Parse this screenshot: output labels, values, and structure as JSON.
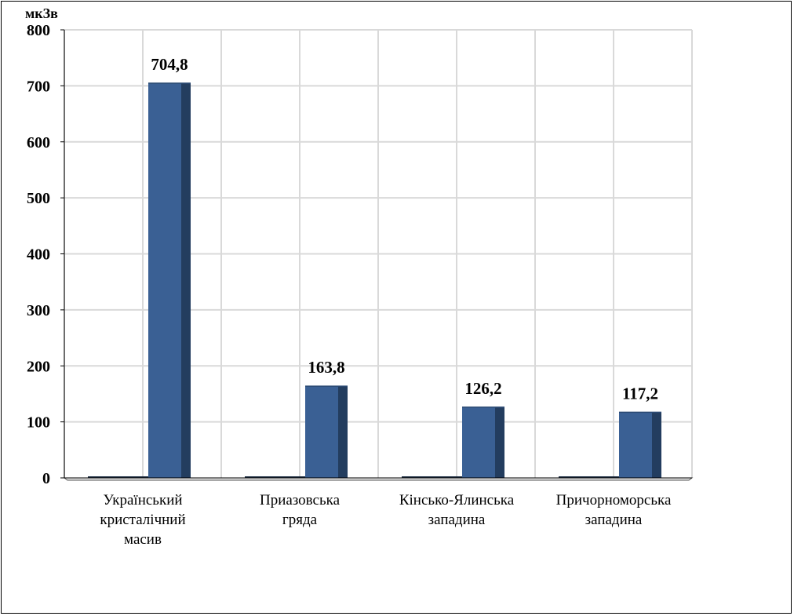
{
  "chart_data": {
    "type": "bar",
    "unit_label": "мкЗв",
    "categories": [
      [
        "Український",
        "кристалічний",
        "масив"
      ],
      [
        "Приазовська",
        "гряда"
      ],
      [
        "Кінсько-Ялинська",
        "западина"
      ],
      [
        "Причорноморська",
        "западина"
      ]
    ],
    "values": [
      704.8,
      163.8,
      126.2,
      117.2
    ],
    "value_labels": [
      "704,8",
      "163,8",
      "126,2",
      "117,2"
    ],
    "yticks": [
      0,
      100,
      200,
      300,
      400,
      500,
      600,
      700,
      800
    ],
    "ylim": [
      0,
      800
    ],
    "grid": true,
    "legend": "none",
    "colors": {
      "bar_front": "#3a6094",
      "bar_side": "#233d5f",
      "grid": "#d9d9d9",
      "axis": "#000000"
    }
  }
}
